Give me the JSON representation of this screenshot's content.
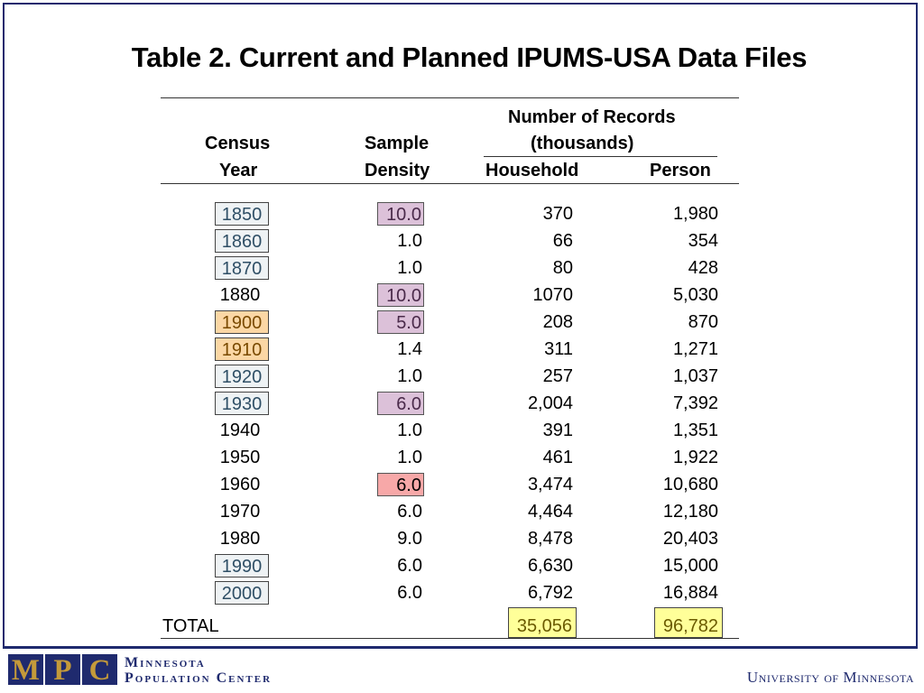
{
  "title": "Table 2. Current and Planned IPUMS-USA Data Files",
  "headers": {
    "census_line1": "Census",
    "census_line2": "Year",
    "sample_line1": "Sample",
    "sample_line2": "Density",
    "records_line1": "Number of Records",
    "records_line2": "(thousands)",
    "household": "Household",
    "person": "Person"
  },
  "rows": [
    {
      "year": "1850",
      "density": "10.0",
      "household": "370",
      "person": "1,980",
      "year_box": "blue",
      "density_box": "purple"
    },
    {
      "year": "1860",
      "density": "1.0",
      "household": "66",
      "person": "354",
      "year_box": "blue",
      "density_box": ""
    },
    {
      "year": "1870",
      "density": "1.0",
      "household": "80",
      "person": "428",
      "year_box": "blue",
      "density_box": ""
    },
    {
      "year": "1880",
      "density": "10.0",
      "household": "1070",
      "person": "5,030",
      "year_box": "",
      "density_box": "purple"
    },
    {
      "year": "1900",
      "density": "5.0",
      "household": "208",
      "person": "870",
      "year_box": "orange",
      "density_box": "purple"
    },
    {
      "year": "1910",
      "density": "1.4",
      "household": "311",
      "person": "1,271",
      "year_box": "orange",
      "density_box": ""
    },
    {
      "year": "1920",
      "density": "1.0",
      "household": "257",
      "person": "1,037",
      "year_box": "blue",
      "density_box": ""
    },
    {
      "year": "1930",
      "density": "6.0",
      "household": "2,004",
      "person": "7,392",
      "year_box": "blue",
      "density_box": "purple"
    },
    {
      "year": "1940",
      "density": "1.0",
      "household": "391",
      "person": "1,351",
      "year_box": "",
      "density_box": ""
    },
    {
      "year": "1950",
      "density": "1.0",
      "household": "461",
      "person": "1,922",
      "year_box": "",
      "density_box": ""
    },
    {
      "year": "1960",
      "density": "6.0",
      "household": "3,474",
      "person": "10,680",
      "year_box": "",
      "density_box": "red"
    },
    {
      "year": "1970",
      "density": "6.0",
      "household": "4,464",
      "person": "12,180",
      "year_box": "",
      "density_box": ""
    },
    {
      "year": "1980",
      "density": "9.0",
      "household": "8,478",
      "person": "20,403",
      "year_box": "",
      "density_box": ""
    },
    {
      "year": "1990",
      "density": "6.0",
      "household": "6,630",
      "person": "15,000",
      "year_box": "blue",
      "density_box": ""
    },
    {
      "year": "2000",
      "density": "6.0",
      "household": "6,792",
      "person": "16,884",
      "year_box": "blue",
      "density_box": ""
    }
  ],
  "total": {
    "label": "TOTAL",
    "household": "35,056",
    "person": "96,782"
  },
  "colors": {
    "frame": "#1f2a6e",
    "blue_box": "#eef2f4",
    "orange_box": "#fbd7a5",
    "purple_box": "#dcc1d9",
    "red_box": "#f7a8a8",
    "yellow_box": "#ffff99",
    "year_text_blue": "#2f4f66",
    "year_text_orange": "#7a4a00",
    "density_text_purple": "#4a2a4a",
    "total_text": "#6b5a00"
  },
  "footer": {
    "logo_letters": [
      "M",
      "P",
      "C"
    ],
    "org_line1": "Minnesota",
    "org_line2": "Population Center",
    "university": "University of Minnesota"
  }
}
